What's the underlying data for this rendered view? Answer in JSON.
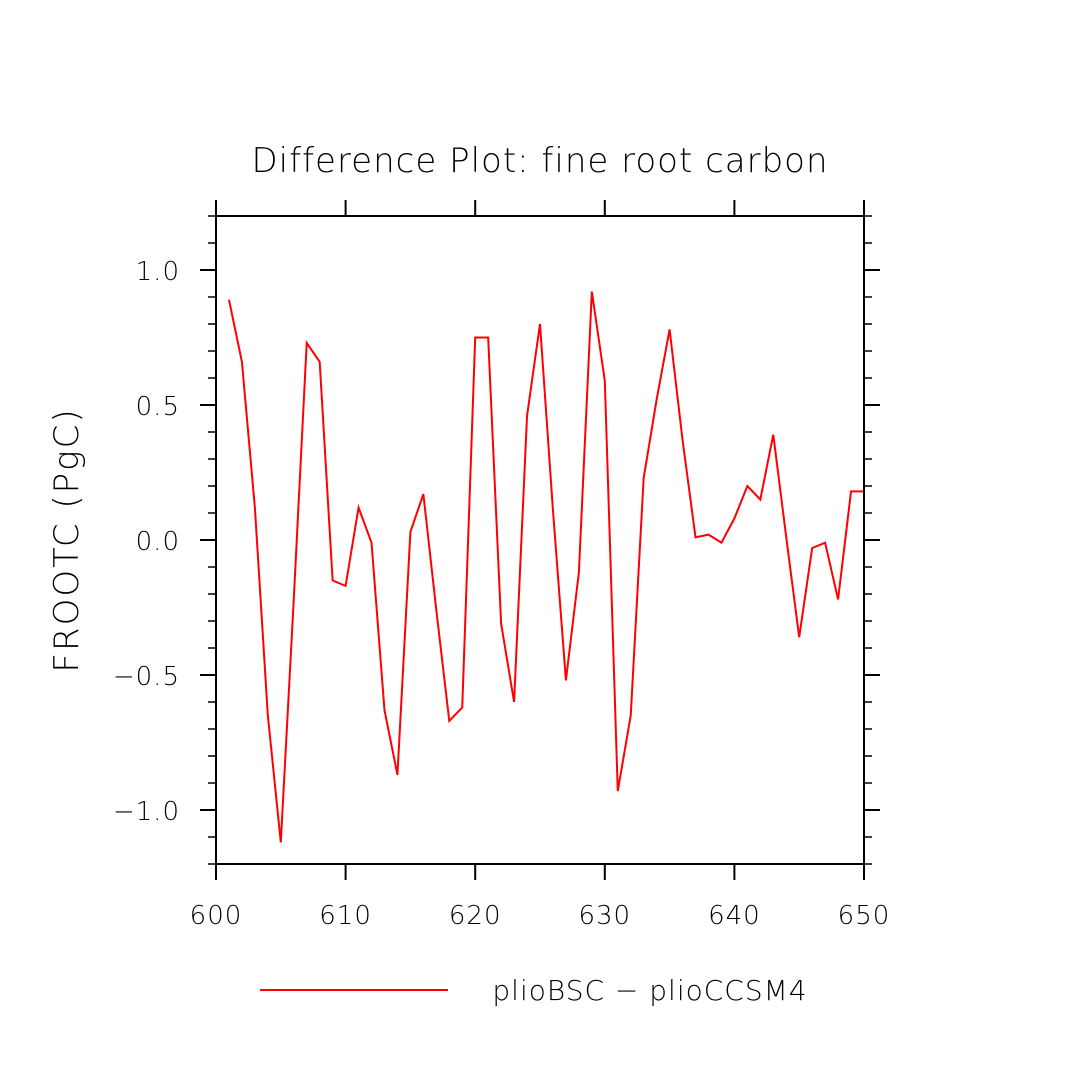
{
  "chart_data": {
    "type": "line",
    "title": "Difference Plot: fine root carbon",
    "xlabel": "",
    "ylabel": "FROOTC  (PgC)",
    "xlim": [
      600,
      650
    ],
    "ylim": [
      -1.2,
      1.2
    ],
    "x_ticks": [
      600,
      610,
      620,
      630,
      640,
      650
    ],
    "x_tick_labels": [
      "600",
      "610",
      "620",
      "630",
      "640",
      "650"
    ],
    "y_ticks": [
      -1.0,
      -0.5,
      0.0,
      0.5,
      1.0
    ],
    "y_tick_labels": [
      "−1.0",
      "−0.5",
      "0.0",
      "0.5",
      "1.0"
    ],
    "x_minor_step": 10,
    "y_minor_step": 0.1,
    "grid": false,
    "legend_position": "bottom",
    "series": [
      {
        "name": "plioBSC − plioCCSM4",
        "color": "#ff0000",
        "x": [
          601,
          602,
          603,
          604,
          605,
          606,
          607,
          608,
          609,
          610,
          611,
          612,
          613,
          614,
          615,
          616,
          617,
          618,
          619,
          620,
          621,
          622,
          623,
          624,
          625,
          626,
          627,
          628,
          629,
          630,
          631,
          632,
          633,
          634,
          635,
          636,
          637,
          638,
          639,
          640,
          641,
          642,
          643,
          644,
          645,
          646,
          647,
          648,
          649,
          650
        ],
        "y": [
          0.89,
          0.66,
          0.12,
          -0.65,
          -1.12,
          -0.22,
          0.73,
          0.66,
          -0.15,
          -0.17,
          0.12,
          -0.01,
          -0.63,
          -0.87,
          0.03,
          0.17,
          -0.26,
          -0.67,
          -0.62,
          0.75,
          0.75,
          -0.31,
          -0.6,
          0.46,
          0.8,
          0.11,
          -0.52,
          -0.12,
          0.92,
          0.59,
          -0.93,
          -0.65,
          0.23,
          0.52,
          0.78,
          0.37,
          0.01,
          0.02,
          -0.01,
          0.08,
          0.2,
          0.15,
          0.39,
          0.01,
          -0.36,
          -0.03,
          -0.01,
          -0.22,
          0.18,
          0.18
        ]
      }
    ]
  }
}
